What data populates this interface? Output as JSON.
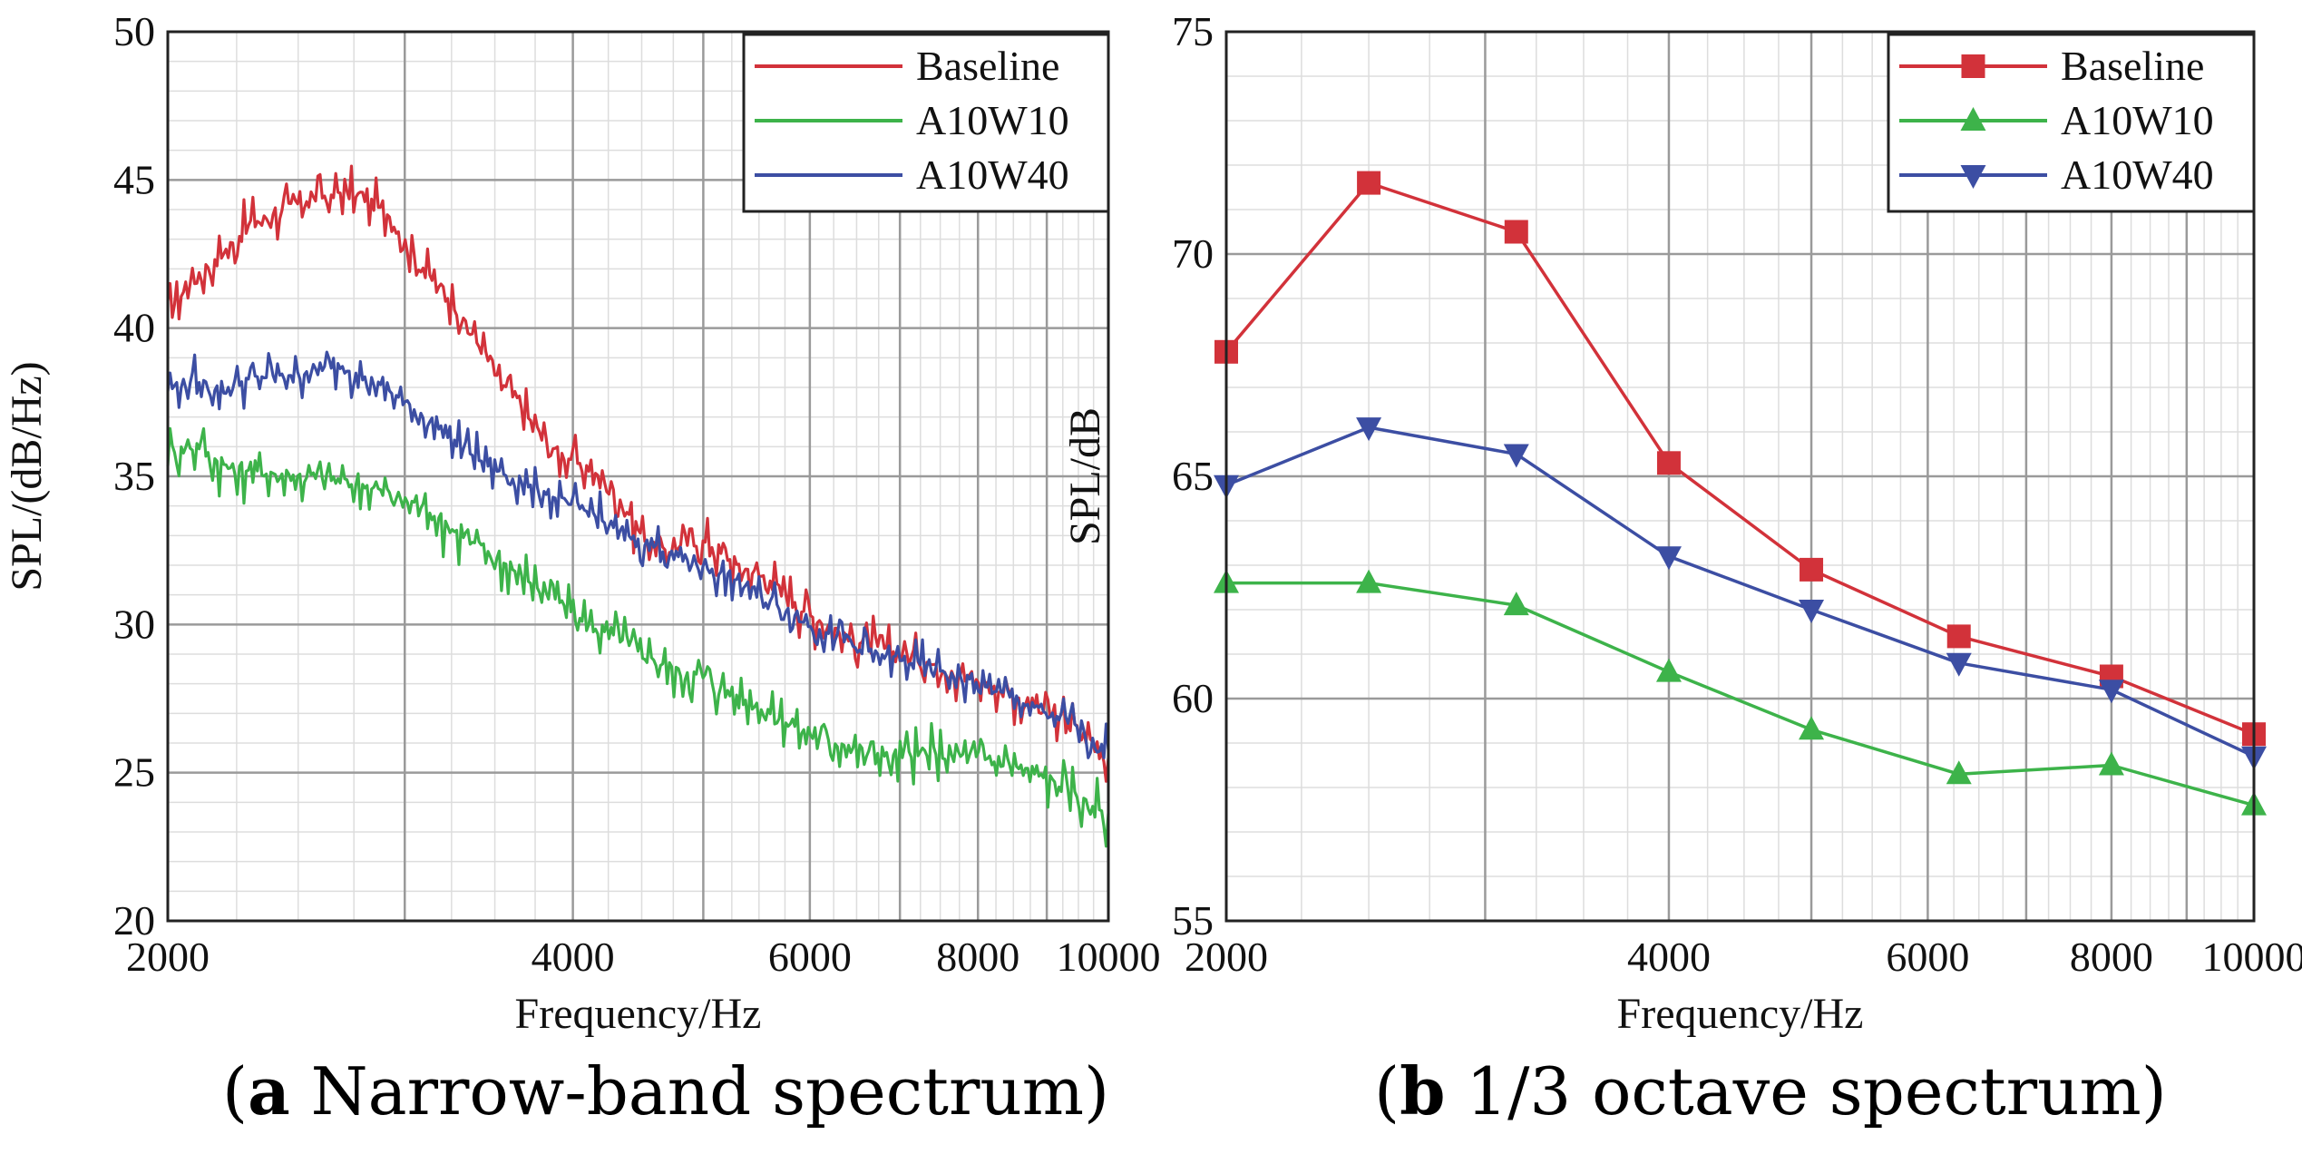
{
  "chart_data": [
    {
      "type": "line",
      "title": "",
      "xlabel": "Frequency/Hz",
      "ylabel": "SPL/(dB/Hz)",
      "xscale": "log",
      "xlim": [
        2000,
        10000
      ],
      "ylim": [
        20,
        50
      ],
      "xticks": [
        2000,
        4000,
        6000,
        8000,
        10000
      ],
      "yticks": [
        20,
        25,
        30,
        35,
        40,
        45,
        50
      ],
      "grid": true,
      "legend_position": "top-right",
      "series": [
        {
          "name": "Baseline",
          "color": "#d2323a",
          "marker": "none",
          "x": [
            2000,
            2100,
            2200,
            2300,
            2500,
            2700,
            2900,
            3100,
            3300,
            3500,
            3700,
            3900,
            4100,
            4300,
            4500,
            4700,
            5000,
            5300,
            5600,
            6000,
            6500,
            7000,
            7500,
            8000,
            8500,
            9000,
            9500,
            10000
          ],
          "y": [
            40.5,
            41.8,
            42.5,
            43.5,
            44.2,
            44.6,
            44.0,
            42.0,
            40.5,
            38.5,
            37.0,
            35.8,
            35.3,
            34.5,
            33.0,
            32.5,
            32.8,
            32.0,
            31.5,
            30.3,
            29.5,
            29.0,
            28.6,
            28.1,
            27.6,
            27.0,
            26.5,
            25.5
          ],
          "noise": 0.9
        },
        {
          "name": "A10W10",
          "color": "#3db34a",
          "marker": "none",
          "x": [
            2000,
            2100,
            2200,
            2300,
            2500,
            2700,
            2900,
            3100,
            3300,
            3500,
            3700,
            3900,
            4100,
            4300,
            4500,
            4700,
            5000,
            5300,
            5600,
            6000,
            6500,
            7000,
            7500,
            8000,
            8500,
            9000,
            9500,
            10000
          ],
          "y": [
            35.8,
            36.0,
            35.4,
            35.2,
            35.0,
            34.8,
            34.5,
            34.0,
            33.0,
            32.3,
            31.5,
            30.8,
            30.0,
            29.6,
            29.0,
            28.6,
            28.2,
            27.6,
            27.0,
            26.3,
            25.8,
            25.5,
            25.6,
            25.5,
            25.2,
            24.8,
            24.2,
            23.5
          ],
          "noise": 1.0
        },
        {
          "name": "A10W40",
          "color": "#3c4ea3",
          "marker": "none",
          "x": [
            2000,
            2100,
            2200,
            2300,
            2500,
            2700,
            2900,
            3100,
            3300,
            3500,
            3700,
            3900,
            4100,
            4300,
            4500,
            4700,
            5000,
            5300,
            5600,
            6000,
            6500,
            7000,
            7500,
            8000,
            8500,
            9000,
            9500,
            10000
          ],
          "y": [
            38.0,
            38.2,
            37.8,
            38.3,
            38.5,
            38.7,
            38.0,
            37.0,
            36.0,
            35.2,
            34.7,
            34.2,
            33.8,
            33.2,
            32.8,
            32.4,
            32.0,
            31.5,
            30.8,
            30.0,
            29.2,
            28.8,
            28.5,
            28.0,
            27.5,
            27.0,
            26.5,
            25.8
          ],
          "noise": 0.8
        }
      ]
    },
    {
      "type": "line",
      "title": "",
      "xlabel": "Frequency/Hz",
      "ylabel": "SPL/dB",
      "xscale": "log",
      "xlim": [
        2000,
        10000
      ],
      "ylim": [
        55,
        75
      ],
      "xticks": [
        2000,
        4000,
        6000,
        8000,
        10000
      ],
      "yticks": [
        55,
        60,
        65,
        70,
        75
      ],
      "grid": true,
      "legend_position": "top-right",
      "series": [
        {
          "name": "Baseline",
          "color": "#d2323a",
          "marker": "square",
          "x": [
            2000,
            2500,
            3150,
            4000,
            5000,
            6300,
            8000,
            10000
          ],
          "y": [
            67.8,
            71.6,
            70.5,
            65.3,
            62.9,
            61.4,
            60.5,
            59.2
          ]
        },
        {
          "name": "A10W10",
          "color": "#3db34a",
          "marker": "triangle-up",
          "x": [
            2000,
            2500,
            3150,
            4000,
            5000,
            6300,
            8000,
            10000
          ],
          "y": [
            62.6,
            62.6,
            62.1,
            60.6,
            59.3,
            58.3,
            58.5,
            57.6
          ]
        },
        {
          "name": "A10W40",
          "color": "#3c4ea3",
          "marker": "triangle-down",
          "x": [
            2000,
            2500,
            3150,
            4000,
            5000,
            6300,
            8000,
            10000
          ],
          "y": [
            64.8,
            66.1,
            65.5,
            63.2,
            62.0,
            60.8,
            60.2,
            58.7
          ]
        }
      ]
    }
  ],
  "captions": [
    {
      "letter": "a",
      "text": " Narrow-band spectrum"
    },
    {
      "letter": "b",
      "text": " 1/3 octave spectrum"
    }
  ]
}
